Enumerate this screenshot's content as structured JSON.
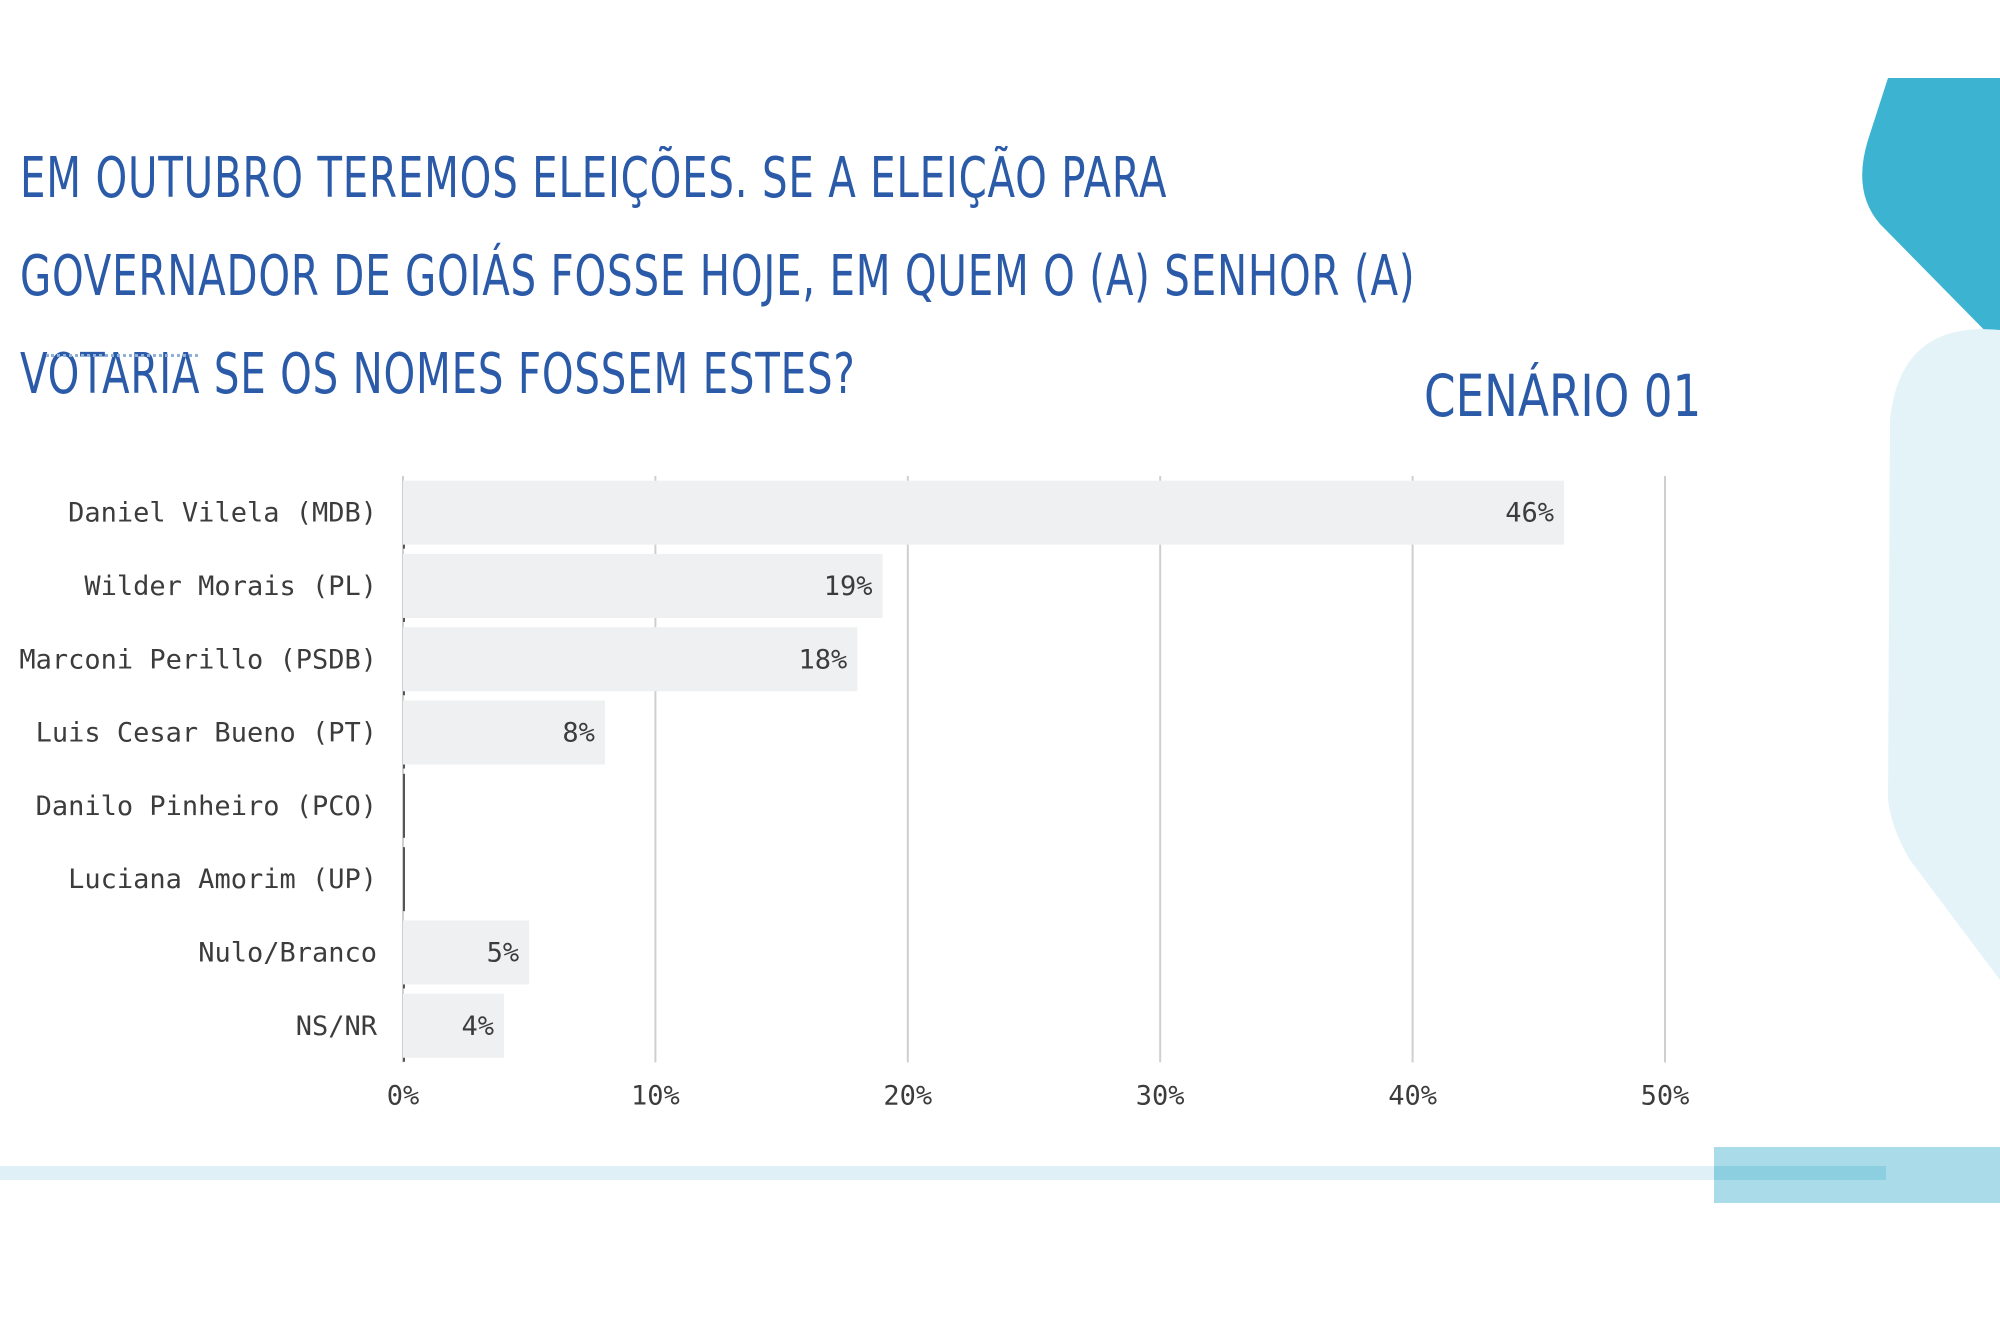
{
  "title": "Em outubro teremos eleições. Se a eleição para governador de Goiás fosse hoje, em quem o (a) senhor (a) votaria se os nomes fossem estes?",
  "scenario_label": "CENÁRIO 01",
  "colors": {
    "title": "#2a5aa8",
    "bar": "#eef0f1",
    "grid": "#cfcfcf",
    "accent_teal": "#3cb3d1",
    "accent_light": "#e4f3f8"
  },
  "chart_data": {
    "type": "bar",
    "orientation": "horizontal",
    "categories": [
      "Daniel Vilela (MDB)",
      "Wilder Morais (PL)",
      "Marconi Perillo (PSDB)",
      "Luis Cesar Bueno (PT)",
      "Danilo Pinheiro (PCO)",
      "Luciana Amorim (UP)",
      "Nulo/Branco",
      "NS/NR"
    ],
    "values": [
      46,
      19,
      18,
      8,
      0,
      0,
      5,
      4
    ],
    "data_labels": [
      "46%",
      "19%",
      "18%",
      "8%",
      "",
      "",
      "5%",
      "4%"
    ],
    "x_ticks": [
      0,
      10,
      20,
      30,
      40,
      50
    ],
    "x_tick_labels": [
      "0%",
      "10%",
      "20%",
      "30%",
      "40%",
      "50%"
    ],
    "xlim": [
      0,
      50
    ],
    "grid": true
  }
}
